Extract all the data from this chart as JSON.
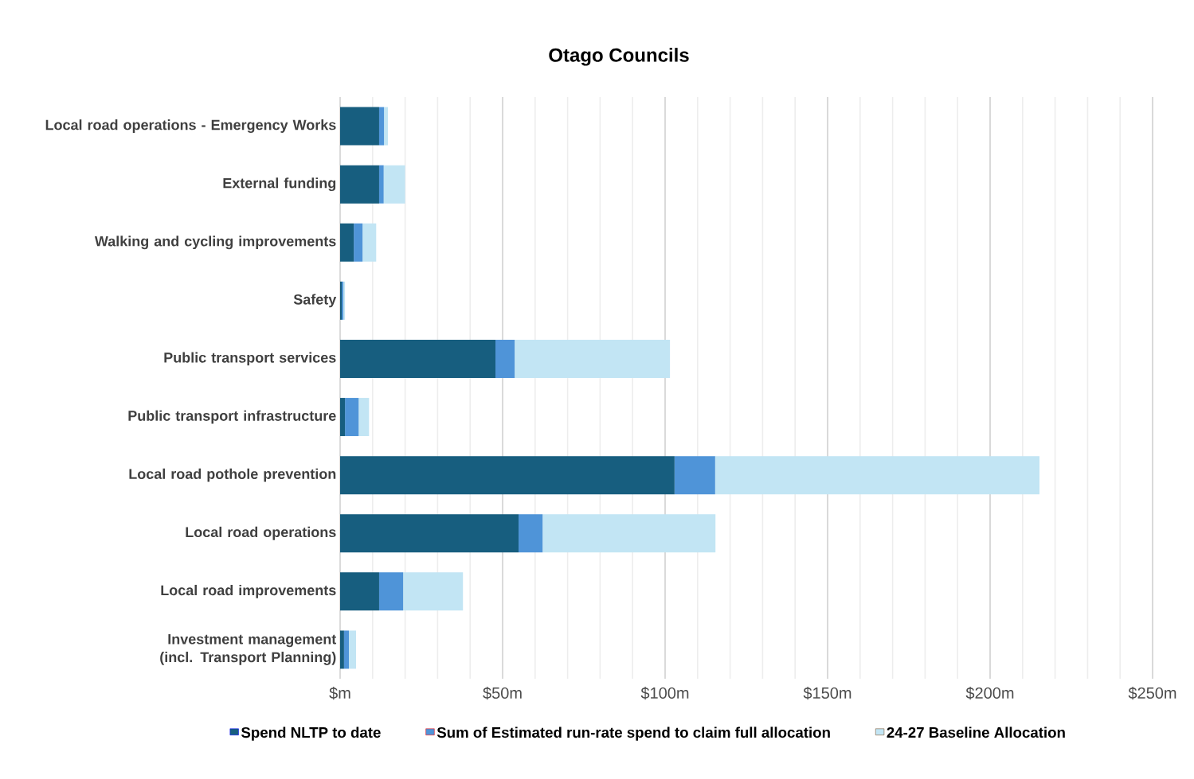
{
  "chart_data": {
    "type": "bar",
    "orientation": "horizontal",
    "stacked": true,
    "title": "Otago Councils",
    "categories": [
      "Local road operations - Emergency Works",
      "External funding",
      "Walking and cycling improvements",
      "Safety",
      "Public transport services",
      "Public transport infrastructure",
      "Local road pothole prevention",
      "Local road operations",
      "Local road improvements",
      "Investment management (incl. Transport Planning)"
    ],
    "series": [
      {
        "name": "Spend NLTP to date",
        "color": "#175e7f",
        "values": [
          12.0,
          12.0,
          4.2,
          0.5,
          47.8,
          1.5,
          102.9,
          54.9,
          12.0,
          1.2
        ]
      },
      {
        "name": "Sum of Estimated run-rate spend to claim full allocation",
        "color": "#4f94d8",
        "values": [
          1.5,
          1.4,
          2.7,
          0.5,
          5.9,
          4.2,
          12.5,
          7.4,
          7.4,
          1.5
        ]
      },
      {
        "name": "24-27 Baseline Allocation",
        "color": "#c2e5f4",
        "values": [
          1.2,
          6.6,
          4.2,
          0.5,
          47.8,
          3.2,
          99.8,
          53.2,
          18.4,
          2.2
        ]
      }
    ],
    "xlim": [
      0,
      250
    ],
    "xticks": [
      {
        "value": 0,
        "label": "$m"
      },
      {
        "value": 50,
        "label": "$50m"
      },
      {
        "value": 100,
        "label": "$100m"
      },
      {
        "value": 150,
        "label": "$150m"
      },
      {
        "value": 200,
        "label": "$200m"
      },
      {
        "value": 250,
        "label": "$250m"
      }
    ],
    "grid": "x",
    "legend": "bottom"
  }
}
